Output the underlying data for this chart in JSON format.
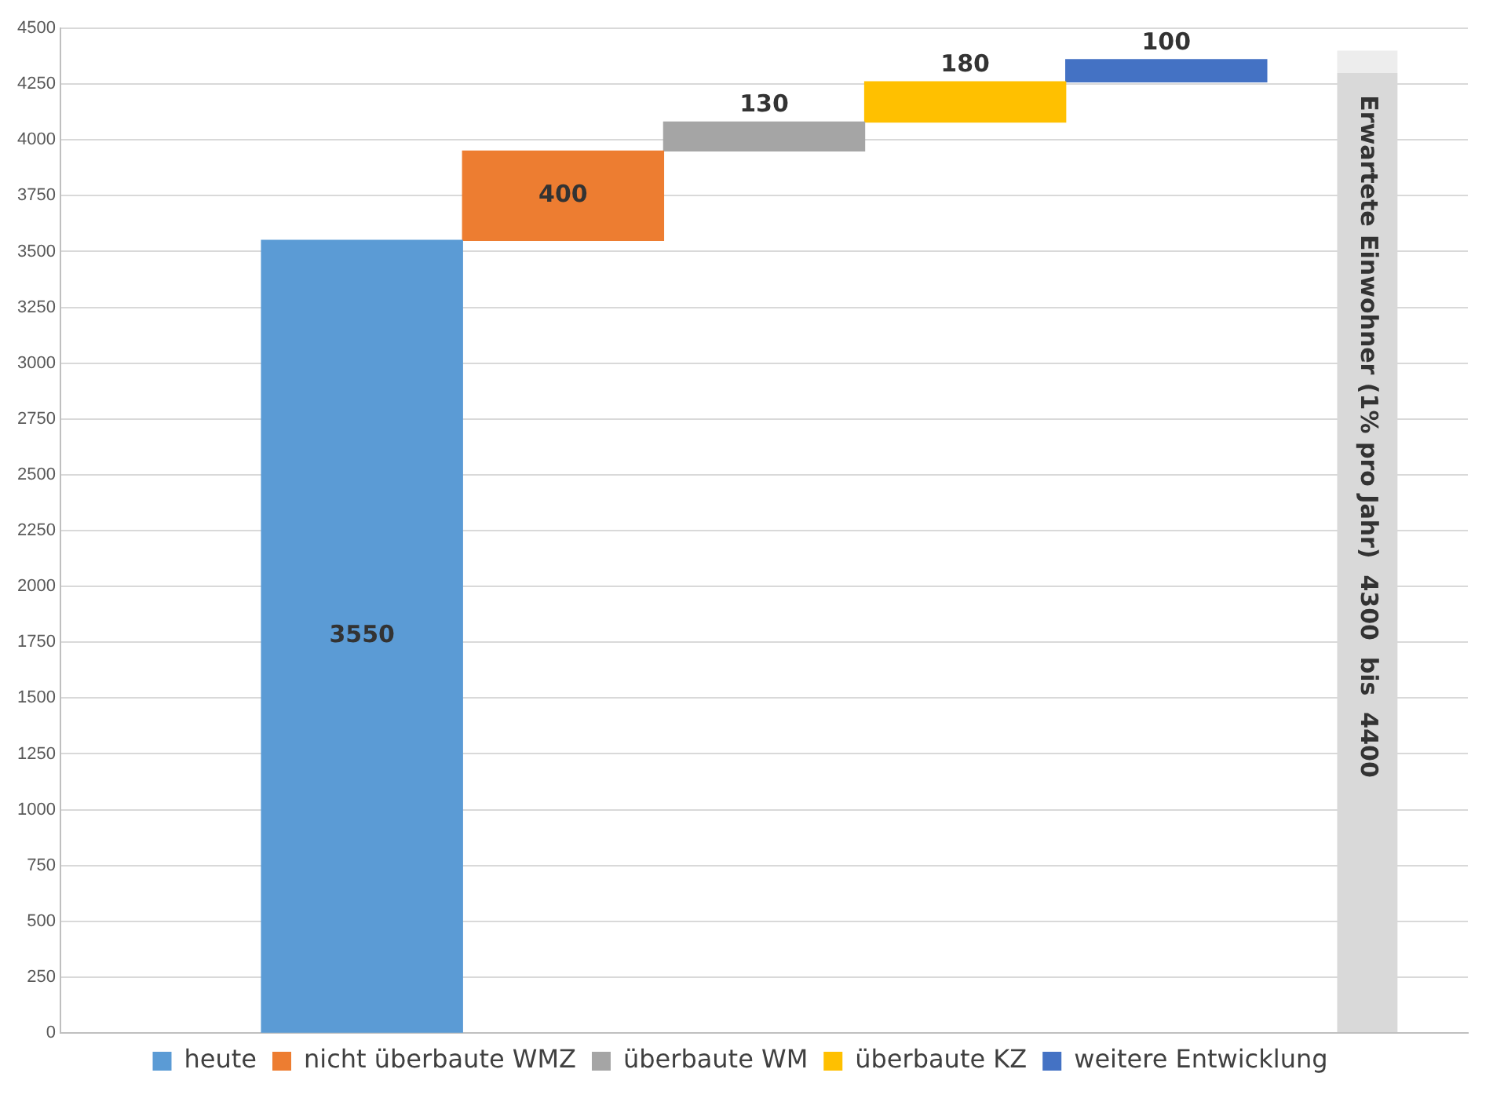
{
  "chart_data": {
    "type": "bar",
    "categories": [
      null,
      null,
      null,
      null,
      null,
      null,
      null
    ],
    "series": [
      {
        "name": "heute",
        "color": "#5b9bd5",
        "values": [
          null,
          3550,
          null,
          null,
          null,
          null,
          null
        ],
        "base": [
          null,
          0,
          null,
          null,
          null,
          null,
          null
        ],
        "value_labels": [
          null,
          "3550",
          null,
          null,
          null,
          null,
          null
        ]
      },
      {
        "name": "nicht überbaute WMZ",
        "color": "#ed7d31",
        "values": [
          null,
          null,
          400,
          null,
          null,
          null,
          null
        ],
        "base": [
          null,
          null,
          3550,
          null,
          null,
          null,
          null
        ],
        "value_labels": [
          null,
          null,
          "400",
          null,
          null,
          null,
          null
        ]
      },
      {
        "name": "überbaute WM",
        "color": "#a5a5a5",
        "values": [
          null,
          null,
          null,
          130,
          null,
          null,
          null
        ],
        "base": [
          null,
          null,
          null,
          3950,
          null,
          null,
          null
        ],
        "value_labels": [
          null,
          null,
          null,
          "130",
          null,
          null,
          null
        ]
      },
      {
        "name": "überbaute KZ",
        "color": "#ffc000",
        "values": [
          null,
          null,
          null,
          null,
          180,
          null,
          null
        ],
        "base": [
          null,
          null,
          null,
          null,
          4080,
          null,
          null
        ],
        "value_labels": [
          null,
          null,
          null,
          null,
          "180",
          null,
          null
        ]
      },
      {
        "name": "weitere Entwicklung",
        "color": "#4472c4",
        "values": [
          null,
          null,
          null,
          null,
          null,
          100,
          null
        ],
        "base": [
          null,
          null,
          null,
          null,
          null,
          4260,
          null
        ],
        "value_labels": [
          null,
          null,
          null,
          null,
          null,
          "100",
          null
        ]
      },
      {
        "color": "#d9d9d9",
        "values": [
          null,
          null,
          null,
          null,
          null,
          null,
          4300
        ],
        "base": [
          null,
          null,
          null,
          null,
          null,
          null,
          0
        ]
      },
      {
        "color": "#ededed",
        "values": [
          null,
          null,
          null,
          null,
          null,
          null,
          100
        ],
        "base": [
          null,
          null,
          null,
          null,
          null,
          null,
          4300
        ]
      }
    ],
    "ylim": [
      0,
      4500
    ],
    "yticks": [
      0,
      250,
      500,
      750,
      1000,
      1250,
      1500,
      1750,
      2000,
      2250,
      2500,
      2750,
      3000,
      3250,
      3500,
      3750,
      4000,
      4250,
      4500
    ],
    "grid": "y",
    "legend": "bottom",
    "tick_labels": "y",
    "annotations": [
      "Erwartete Einwohner (1% pro Jahr)  4300  bis  4400"
    ]
  }
}
